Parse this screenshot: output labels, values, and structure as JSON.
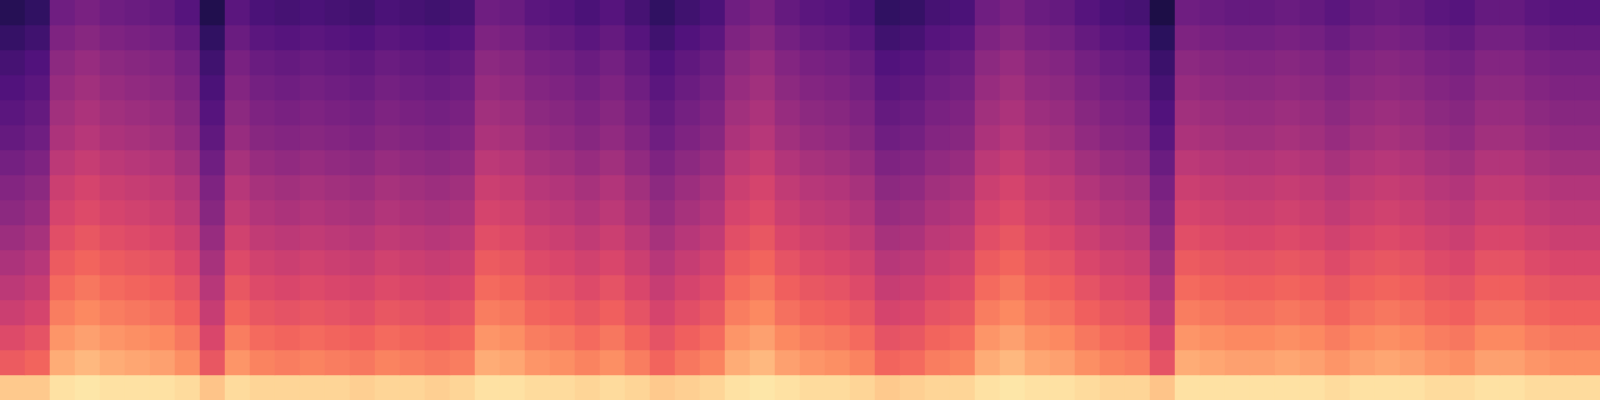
{
  "chart_data": {
    "type": "heatmap",
    "tick_labels": false,
    "z_range": [
      -80,
      0
    ],
    "cells": [
      [
        -9,
        -9,
        -5,
        -4,
        -5,
        -5,
        -5,
        -6,
        -10,
        -6,
        -7,
        -7,
        -7,
        -7,
        -8,
        -7,
        -7,
        -8,
        -7,
        -5,
        -5,
        -6,
        -6,
        -7,
        -6,
        -7,
        -9,
        -8,
        -7,
        -5,
        -4,
        -5,
        -6,
        -6,
        -7,
        -9,
        -8,
        -7,
        -7,
        -5,
        -4,
        -5,
        -5,
        -6,
        -7,
        -7,
        -10,
        -5,
        -5,
        -5,
        -5,
        -5,
        -5,
        -6,
        -5,
        -5,
        -5,
        -6,
        -6,
        -5,
        -5,
        -6,
        -6,
        -6
      ],
      [
        -28,
        -26,
        -14,
        -12,
        -14,
        -15,
        -16,
        -19,
        -29,
        -18,
        -21,
        -22,
        -21,
        -22,
        -23,
        -21,
        -22,
        -23,
        -22,
        -14,
        -15,
        -18,
        -19,
        -21,
        -19,
        -22,
        -26,
        -23,
        -21,
        -14,
        -12,
        -16,
        -18,
        -19,
        -21,
        -26,
        -25,
        -22,
        -21,
        -14,
        -12,
        -15,
        -16,
        -19,
        -21,
        -22,
        -30,
        -14,
        -15,
        -16,
        -16,
        -15,
        -16,
        -18,
        -16,
        -15,
        -16,
        -18,
        -19,
        -16,
        -16,
        -18,
        -19,
        -19
      ],
      [
        -32,
        -30,
        -18,
        -16,
        -18,
        -19,
        -20,
        -23,
        -33,
        -22,
        -25,
        -26,
        -25,
        -26,
        -27,
        -25,
        -26,
        -27,
        -26,
        -18,
        -19,
        -22,
        -23,
        -25,
        -23,
        -26,
        -30,
        -27,
        -25,
        -18,
        -16,
        -20,
        -22,
        -23,
        -25,
        -30,
        -29,
        -26,
        -25,
        -18,
        -16,
        -19,
        -20,
        -23,
        -25,
        -26,
        -34,
        -18,
        -19,
        -20,
        -20,
        -19,
        -20,
        -22,
        -20,
        -19,
        -20,
        -22,
        -23,
        -20,
        -20,
        -22,
        -23,
        -23
      ],
      [
        -36,
        -34,
        -22,
        -20,
        -22,
        -23,
        -24,
        -27,
        -37,
        -26,
        -29,
        -30,
        -29,
        -30,
        -31,
        -29,
        -30,
        -31,
        -30,
        -22,
        -23,
        -26,
        -27,
        -29,
        -27,
        -30,
        -34,
        -31,
        -29,
        -22,
        -20,
        -24,
        -26,
        -27,
        -29,
        -34,
        -33,
        -30,
        -29,
        -22,
        -20,
        -23,
        -24,
        -27,
        -29,
        -30,
        -38,
        -22,
        -23,
        -24,
        -24,
        -23,
        -24,
        -26,
        -24,
        -23,
        -24,
        -26,
        -27,
        -24,
        -24,
        -26,
        -27,
        -27
      ],
      [
        -39,
        -37,
        -25,
        -23,
        -25,
        -26,
        -27,
        -30,
        -40,
        -29,
        -32,
        -33,
        -32,
        -33,
        -34,
        -32,
        -33,
        -34,
        -33,
        -25,
        -26,
        -29,
        -30,
        -32,
        -30,
        -33,
        -37,
        -34,
        -32,
        -25,
        -23,
        -27,
        -29,
        -30,
        -32,
        -37,
        -36,
        -33,
        -32,
        -25,
        -23,
        -26,
        -27,
        -30,
        -32,
        -33,
        -41,
        -25,
        -26,
        -27,
        -27,
        -26,
        -27,
        -29,
        -27,
        -26,
        -27,
        -29,
        -30,
        -27,
        -27,
        -29,
        -30,
        -30
      ],
      [
        -42,
        -40,
        -28,
        -26,
        -28,
        -29,
        -30,
        -33,
        -43,
        -32,
        -35,
        -36,
        -35,
        -36,
        -37,
        -35,
        -36,
        -37,
        -36,
        -28,
        -29,
        -32,
        -33,
        -35,
        -33,
        -36,
        -40,
        -37,
        -35,
        -28,
        -26,
        -30,
        -32,
        -33,
        -35,
        -40,
        -39,
        -36,
        -35,
        -28,
        -26,
        -29,
        -30,
        -33,
        -35,
        -36,
        -44,
        -28,
        -29,
        -30,
        -30,
        -29,
        -30,
        -32,
        -30,
        -29,
        -30,
        -32,
        -33,
        -30,
        -30,
        -32,
        -33,
        -33
      ],
      [
        -45,
        -43,
        -31,
        -29,
        -31,
        -32,
        -33,
        -36,
        -46,
        -35,
        -38,
        -39,
        -38,
        -39,
        -40,
        -38,
        -39,
        -40,
        -39,
        -31,
        -32,
        -35,
        -36,
        -38,
        -36,
        -39,
        -43,
        -40,
        -38,
        -31,
        -29,
        -33,
        -35,
        -36,
        -38,
        -43,
        -42,
        -39,
        -38,
        -31,
        -29,
        -32,
        -33,
        -36,
        -38,
        -39,
        -47,
        -31,
        -32,
        -33,
        -33,
        -32,
        -33,
        -35,
        -33,
        -32,
        -33,
        -35,
        -36,
        -33,
        -33,
        -35,
        -36,
        -36
      ],
      [
        -48,
        -46,
        -34,
        -32,
        -34,
        -35,
        -36,
        -39,
        -49,
        -38,
        -41,
        -42,
        -41,
        -42,
        -43,
        -41,
        -42,
        -43,
        -42,
        -34,
        -35,
        -38,
        -39,
        -41,
        -39,
        -42,
        -46,
        -43,
        -41,
        -34,
        -32,
        -36,
        -38,
        -39,
        -41,
        -46,
        -45,
        -42,
        -41,
        -34,
        -32,
        -35,
        -36,
        -39,
        -41,
        -42,
        -50,
        -34,
        -35,
        -36,
        -36,
        -35,
        -36,
        -38,
        -36,
        -35,
        -36,
        -38,
        -39,
        -36,
        -36,
        -38,
        -39,
        -39
      ],
      [
        -50,
        -48,
        -36,
        -34,
        -36,
        -37,
        -38,
        -41,
        -51,
        -40,
        -43,
        -44,
        -43,
        -44,
        -45,
        -43,
        -44,
        -45,
        -44,
        -36,
        -37,
        -40,
        -41,
        -43,
        -41,
        -44,
        -48,
        -45,
        -43,
        -36,
        -34,
        -38,
        -40,
        -41,
        -43,
        -48,
        -47,
        -44,
        -43,
        -36,
        -34,
        -37,
        -38,
        -41,
        -43,
        -44,
        -52,
        -36,
        -37,
        -38,
        -38,
        -37,
        -38,
        -40,
        -38,
        -37,
        -38,
        -40,
        -41,
        -38,
        -38,
        -40,
        -41,
        -41
      ],
      [
        -53,
        -51,
        -39,
        -37,
        -39,
        -40,
        -41,
        -44,
        -54,
        -43,
        -46,
        -47,
        -46,
        -47,
        -48,
        -46,
        -47,
        -48,
        -47,
        -39,
        -40,
        -43,
        -44,
        -46,
        -44,
        -47,
        -51,
        -48,
        -46,
        -39,
        -37,
        -41,
        -43,
        -44,
        -46,
        -51,
        -50,
        -47,
        -46,
        -39,
        -37,
        -40,
        -41,
        -44,
        -46,
        -47,
        -55,
        -39,
        -40,
        -41,
        -41,
        -40,
        -41,
        -43,
        -41,
        -40,
        -41,
        -43,
        -44,
        -41,
        -41,
        -43,
        -44,
        -44
      ],
      [
        -56,
        -54,
        -42,
        -40,
        -42,
        -43,
        -44,
        -47,
        -57,
        -46,
        -49,
        -50,
        -49,
        -50,
        -51,
        -49,
        -50,
        -51,
        -50,
        -42,
        -43,
        -46,
        -47,
        -49,
        -47,
        -50,
        -54,
        -51,
        -49,
        -42,
        -40,
        -44,
        -46,
        -47,
        -49,
        -54,
        -53,
        -50,
        -49,
        -42,
        -40,
        -43,
        -44,
        -47,
        -49,
        -50,
        -58,
        -42,
        -43,
        -44,
        -44,
        -43,
        -44,
        -46,
        -44,
        -43,
        -44,
        -46,
        -47,
        -44,
        -44,
        -46,
        -47,
        -47
      ],
      [
        -58,
        -56,
        -44,
        -42,
        -44,
        -45,
        -46,
        -49,
        -59,
        -48,
        -51,
        -52,
        -51,
        -52,
        -53,
        -51,
        -52,
        -53,
        -52,
        -44,
        -45,
        -48,
        -49,
        -51,
        -49,
        -52,
        -56,
        -53,
        -51,
        -44,
        -42,
        -46,
        -48,
        -49,
        -51,
        -56,
        -55,
        -52,
        -51,
        -44,
        -42,
        -45,
        -46,
        -49,
        -51,
        -52,
        -60,
        -44,
        -45,
        -46,
        -46,
        -45,
        -46,
        -48,
        -46,
        -45,
        -46,
        -48,
        -49,
        -46,
        -46,
        -48,
        -49,
        -49
      ],
      [
        -60,
        -58,
        -46,
        -44,
        -46,
        -47,
        -48,
        -51,
        -61,
        -50,
        -53,
        -54,
        -53,
        -54,
        -55,
        -53,
        -54,
        -55,
        -54,
        -46,
        -47,
        -50,
        -51,
        -53,
        -51,
        -54,
        -58,
        -55,
        -53,
        -46,
        -44,
        -48,
        -50,
        -51,
        -53,
        -58,
        -57,
        -54,
        -53,
        -46,
        -44,
        -47,
        -48,
        -51,
        -53,
        -54,
        -62,
        -46,
        -47,
        -48,
        -48,
        -47,
        -48,
        -50,
        -48,
        -47,
        -48,
        -50,
        -51,
        -48,
        -48,
        -50,
        -51,
        -51
      ],
      [
        -62,
        -60,
        -48,
        -46,
        -48,
        -49,
        -50,
        -53,
        -63,
        -52,
        -55,
        -56,
        -55,
        -56,
        -57,
        -55,
        -56,
        -57,
        -56,
        -48,
        -49,
        -52,
        -53,
        -55,
        -53,
        -56,
        -60,
        -57,
        -55,
        -48,
        -46,
        -50,
        -52,
        -53,
        -55,
        -60,
        -59,
        -56,
        -55,
        -48,
        -46,
        -49,
        -50,
        -53,
        -55,
        -56,
        -64,
        -48,
        -49,
        -50,
        -50,
        -49,
        -50,
        -52,
        -50,
        -49,
        -50,
        -52,
        -53,
        -50,
        -50,
        -52,
        -53,
        -53
      ],
      [
        -65,
        -63,
        -51,
        -49,
        -51,
        -52,
        -53,
        -56,
        -66,
        -55,
        -58,
        -59,
        -58,
        -59,
        -60,
        -58,
        -59,
        -60,
        -59,
        -51,
        -52,
        -55,
        -56,
        -58,
        -56,
        -59,
        -63,
        -60,
        -58,
        -51,
        -49,
        -53,
        -55,
        -56,
        -58,
        -63,
        -62,
        -59,
        -58,
        -51,
        -49,
        -52,
        -53,
        -56,
        -58,
        -59,
        -67,
        -51,
        -52,
        -53,
        -53,
        -52,
        -53,
        -55,
        -53,
        -52,
        -53,
        -55,
        -56,
        -53,
        -53,
        -55,
        -56,
        -56
      ],
      [
        -68,
        -66,
        -54,
        -52,
        -54,
        -55,
        -56,
        -59,
        -69,
        -58,
        -61,
        -62,
        -61,
        -62,
        -63,
        -61,
        -62,
        -63,
        -62,
        -54,
        -55,
        -58,
        -59,
        -61,
        -59,
        -62,
        -66,
        -63,
        -61,
        -54,
        -52,
        -56,
        -58,
        -59,
        -61,
        -66,
        -65,
        -62,
        -61,
        -54,
        -52,
        -55,
        -56,
        -59,
        -61,
        -62,
        -70,
        -54,
        -55,
        -56,
        -56,
        -55,
        -56,
        -58,
        -56,
        -55,
        -56,
        -58,
        -59,
        -56,
        -56,
        -58,
        -59,
        -59
      ]
    ]
  }
}
